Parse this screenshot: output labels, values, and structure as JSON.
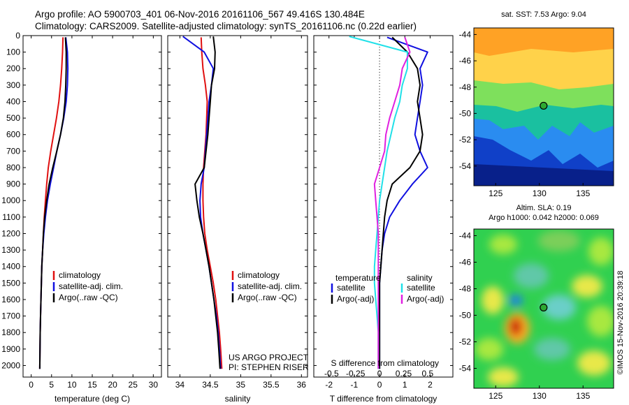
{
  "header": {
    "line1": "Argo profile: AO 5900703_401 06-Nov-2016 20161106_567 49.416S 130.484E",
    "line2": "Climatology: CARS2009. Satellite-adjusted climatology: synTS_20161106.nc (0.22d earlier)"
  },
  "credit": {
    "line1": "US ARGO PROJECT",
    "line2": "PI: STEPHEN RISER",
    "imos": "©IMOS 15-Nov-2016 20:39:18"
  },
  "colors": {
    "climatology": "#e01010",
    "satellite": "#1010e0",
    "argo": "#000000",
    "sat_diff": "#20e0e8",
    "argo_sal_diff": "#e020e0"
  },
  "chart_data": [
    {
      "type": "line",
      "id": "temperature",
      "xlabel": "temperature (deg C)",
      "ylabel": "",
      "xlim": [
        -2,
        32
      ],
      "ylim": [
        2070,
        0
      ],
      "xticks": [
        0,
        5,
        10,
        15,
        20,
        25,
        30
      ],
      "yticks": [
        0,
        100,
        200,
        300,
        400,
        500,
        600,
        700,
        800,
        900,
        1000,
        1100,
        1200,
        1300,
        1400,
        1500,
        1600,
        1700,
        1800,
        1900,
        2000
      ],
      "legend": [
        "climatology",
        "satellite-adj. clim.",
        "Argo(..raw -QC)"
      ],
      "series": [
        {
          "name": "climatology",
          "color_key": "climatology",
          "x": [
            7.8,
            7.7,
            7.5,
            7.2,
            6.8,
            6.2,
            5.5,
            4.8,
            4.2,
            3.8,
            3.5,
            3.2,
            3.0,
            2.8,
            2.6,
            2.5,
            2.4,
            2.3,
            2.2,
            2.1
          ],
          "y": [
            10,
            100,
            200,
            300,
            400,
            500,
            600,
            700,
            800,
            900,
            1000,
            1100,
            1200,
            1300,
            1400,
            1500,
            1600,
            1700,
            1800,
            2020
          ]
        },
        {
          "name": "satellite-adj. clim.",
          "color_key": "satellite",
          "x": [
            8.5,
            8.9,
            9.0,
            8.9,
            8.6,
            8.0,
            7.2,
            6.3,
            5.5,
            4.7,
            4.0,
            3.5,
            3.1,
            2.8,
            2.6,
            2.5,
            2.4,
            2.3,
            2.2,
            2.1
          ],
          "y": [
            10,
            100,
            200,
            300,
            400,
            500,
            600,
            700,
            800,
            900,
            1000,
            1100,
            1200,
            1300,
            1400,
            1500,
            1600,
            1700,
            1800,
            2020
          ]
        },
        {
          "name": "Argo(..raw -QC)",
          "color_key": "argo",
          "x": [
            8.4,
            8.6,
            8.6,
            8.5,
            8.3,
            7.9,
            7.2,
            6.3,
            5.3,
            4.4,
            3.8,
            3.3,
            3.0,
            2.8,
            2.6,
            2.5,
            2.4,
            2.3,
            2.2,
            2.1
          ],
          "y": [
            10,
            100,
            200,
            300,
            400,
            500,
            600,
            700,
            800,
            900,
            1000,
            1100,
            1200,
            1300,
            1400,
            1500,
            1600,
            1700,
            1800,
            2020
          ]
        }
      ]
    },
    {
      "type": "line",
      "id": "salinity",
      "xlabel": "salinity",
      "ylabel": "",
      "xlim": [
        33.8,
        36.1
      ],
      "ylim": [
        2070,
        0
      ],
      "xticks": [
        34,
        34.5,
        35,
        35.5,
        36
      ],
      "legend": [
        "climatology",
        "satellite-adj. clim.",
        "Argo(..raw -QC)"
      ],
      "series": [
        {
          "name": "climatology",
          "color_key": "climatology",
          "x": [
            34.35,
            34.36,
            34.38,
            34.42,
            34.45,
            34.44,
            34.43,
            34.41,
            34.39,
            34.38,
            34.38,
            34.39,
            34.41,
            34.45,
            34.5,
            34.55,
            34.59,
            34.62,
            34.65,
            34.67,
            34.69
          ],
          "y": [
            10,
            100,
            200,
            300,
            400,
            500,
            600,
            700,
            800,
            900,
            1000,
            1100,
            1200,
            1300,
            1400,
            1500,
            1600,
            1700,
            1800,
            1900,
            2020
          ]
        },
        {
          "name": "satellite-adj. clim.",
          "color_key": "satellite",
          "x": [
            34.05,
            34.4,
            34.55,
            34.52,
            34.48,
            34.46,
            34.44,
            34.42,
            34.4,
            34.35,
            34.33,
            34.34,
            34.38,
            34.43,
            34.48,
            34.52,
            34.56,
            34.6,
            34.63,
            34.65,
            34.67
          ],
          "y": [
            5,
            100,
            200,
            300,
            400,
            500,
            600,
            700,
            800,
            900,
            1000,
            1100,
            1200,
            1300,
            1400,
            1500,
            1600,
            1700,
            1800,
            1900,
            2020
          ]
        },
        {
          "name": "Argo(..raw -QC)",
          "color_key": "argo",
          "x": [
            34.55,
            34.58,
            34.57,
            34.52,
            34.5,
            34.48,
            34.46,
            34.43,
            34.4,
            34.25,
            34.28,
            34.32,
            34.38,
            34.43,
            34.48,
            34.52,
            34.56,
            34.59,
            34.62,
            34.64,
            34.66
          ],
          "y": [
            5,
            100,
            200,
            300,
            400,
            500,
            600,
            700,
            800,
            900,
            1000,
            1100,
            1200,
            1300,
            1400,
            1500,
            1600,
            1700,
            1800,
            1900,
            2020
          ]
        }
      ]
    },
    {
      "type": "line",
      "id": "difference",
      "xlabel": "T difference from climatology",
      "top_label": "S difference from climatology",
      "xlim": [
        -2.6,
        2.9
      ],
      "ylim": [
        2070,
        0
      ],
      "xticks": [
        -2,
        -1,
        0,
        1,
        2
      ],
      "s_ticks": [
        {
          "label": "-0.5",
          "t": -1.9
        },
        {
          "label": "-0.25",
          "t": -0.95
        },
        {
          "label": "0",
          "t": 0
        },
        {
          "label": "0.25",
          "t": 0.95
        },
        {
          "label": "0.5",
          "t": 1.9
        }
      ],
      "legend_temperature": "temperature",
      "legend_salinity": "salinity",
      "legend_satellite": "satellite",
      "legend_argo_adj": "Argo(-adj)",
      "series": [
        {
          "name": "satellite",
          "group": "temperature",
          "color_key": "satellite",
          "x": [
            0.3,
            1.9,
            1.6,
            1.7,
            1.6,
            1.5,
            1.4,
            1.6,
            1.9,
            1.3,
            0.8,
            0.4,
            0.2,
            0.1,
            0.05,
            0.0,
            0.0,
            0.0,
            0.0,
            0.0
          ],
          "y": [
            10,
            100,
            200,
            300,
            400,
            500,
            600,
            700,
            800,
            900,
            1000,
            1100,
            1200,
            1300,
            1400,
            1500,
            1600,
            1700,
            1800,
            2020
          ]
        },
        {
          "name": "Argo(-adj)",
          "group": "temperature",
          "color_key": "argo",
          "x": [
            0.5,
            1.1,
            1.5,
            1.6,
            1.5,
            1.6,
            1.7,
            1.6,
            1.2,
            0.5,
            0.3,
            0.2,
            0.15,
            0.1,
            0.05,
            0.0,
            0.0,
            0.0,
            0.0,
            0.0
          ],
          "y": [
            10,
            100,
            200,
            300,
            400,
            500,
            600,
            700,
            800,
            900,
            1000,
            1100,
            1200,
            1300,
            1400,
            1500,
            1600,
            1700,
            1800,
            2020
          ]
        },
        {
          "name": "satellite",
          "group": "salinity",
          "color_key": "sat_diff",
          "x": [
            -1.2,
            1.1,
            1.1,
            0.9,
            0.8,
            0.6,
            0.45,
            0.3,
            0.2,
            0.1,
            0.0,
            -0.05,
            -0.1,
            -0.15,
            -0.2,
            -0.2,
            -0.15,
            -0.1,
            -0.05,
            -0.05
          ],
          "y": [
            5,
            100,
            200,
            300,
            400,
            500,
            600,
            700,
            800,
            900,
            1000,
            1100,
            1200,
            1300,
            1400,
            1500,
            1600,
            1700,
            1800,
            2020
          ]
        },
        {
          "name": "Argo(-adj)",
          "group": "salinity",
          "color_key": "argo_sal_diff",
          "x": [
            1.0,
            1.2,
            0.9,
            0.8,
            0.6,
            0.4,
            0.25,
            0.2,
            0.0,
            -0.2,
            -0.15,
            -0.1,
            -0.05,
            -0.05,
            -0.05,
            -0.05,
            -0.05,
            -0.05,
            -0.05,
            -0.05
          ],
          "y": [
            10,
            100,
            200,
            300,
            400,
            500,
            600,
            700,
            800,
            900,
            1000,
            1100,
            1200,
            1300,
            1400,
            1500,
            1600,
            1700,
            1800,
            2020
          ]
        }
      ]
    },
    {
      "type": "heatmap",
      "id": "sst-map",
      "title": "sat. SST: 7.53  Argo: 9.04",
      "xlim": [
        122.5,
        138.5
      ],
      "ylim": [
        -55.5,
        -43.5
      ],
      "xticks": [
        125,
        130,
        135
      ],
      "yticks": [
        -44,
        -46,
        -48,
        -50,
        -52,
        -54
      ],
      "float_lon": 130.484,
      "float_lat": -49.416
    },
    {
      "type": "heatmap",
      "id": "sla-map",
      "title": "Altim. SLA: 0.19",
      "subtitle": "Argo h1000: 0.042 h2000: 0.069",
      "xlim": [
        122.5,
        138.5
      ],
      "ylim": [
        -55.5,
        -43.5
      ],
      "xticks": [
        125,
        130,
        135
      ],
      "yticks": [
        -44,
        -46,
        -48,
        -50,
        -52,
        -54
      ],
      "float_lon": 130.484,
      "float_lat": -49.416
    }
  ]
}
